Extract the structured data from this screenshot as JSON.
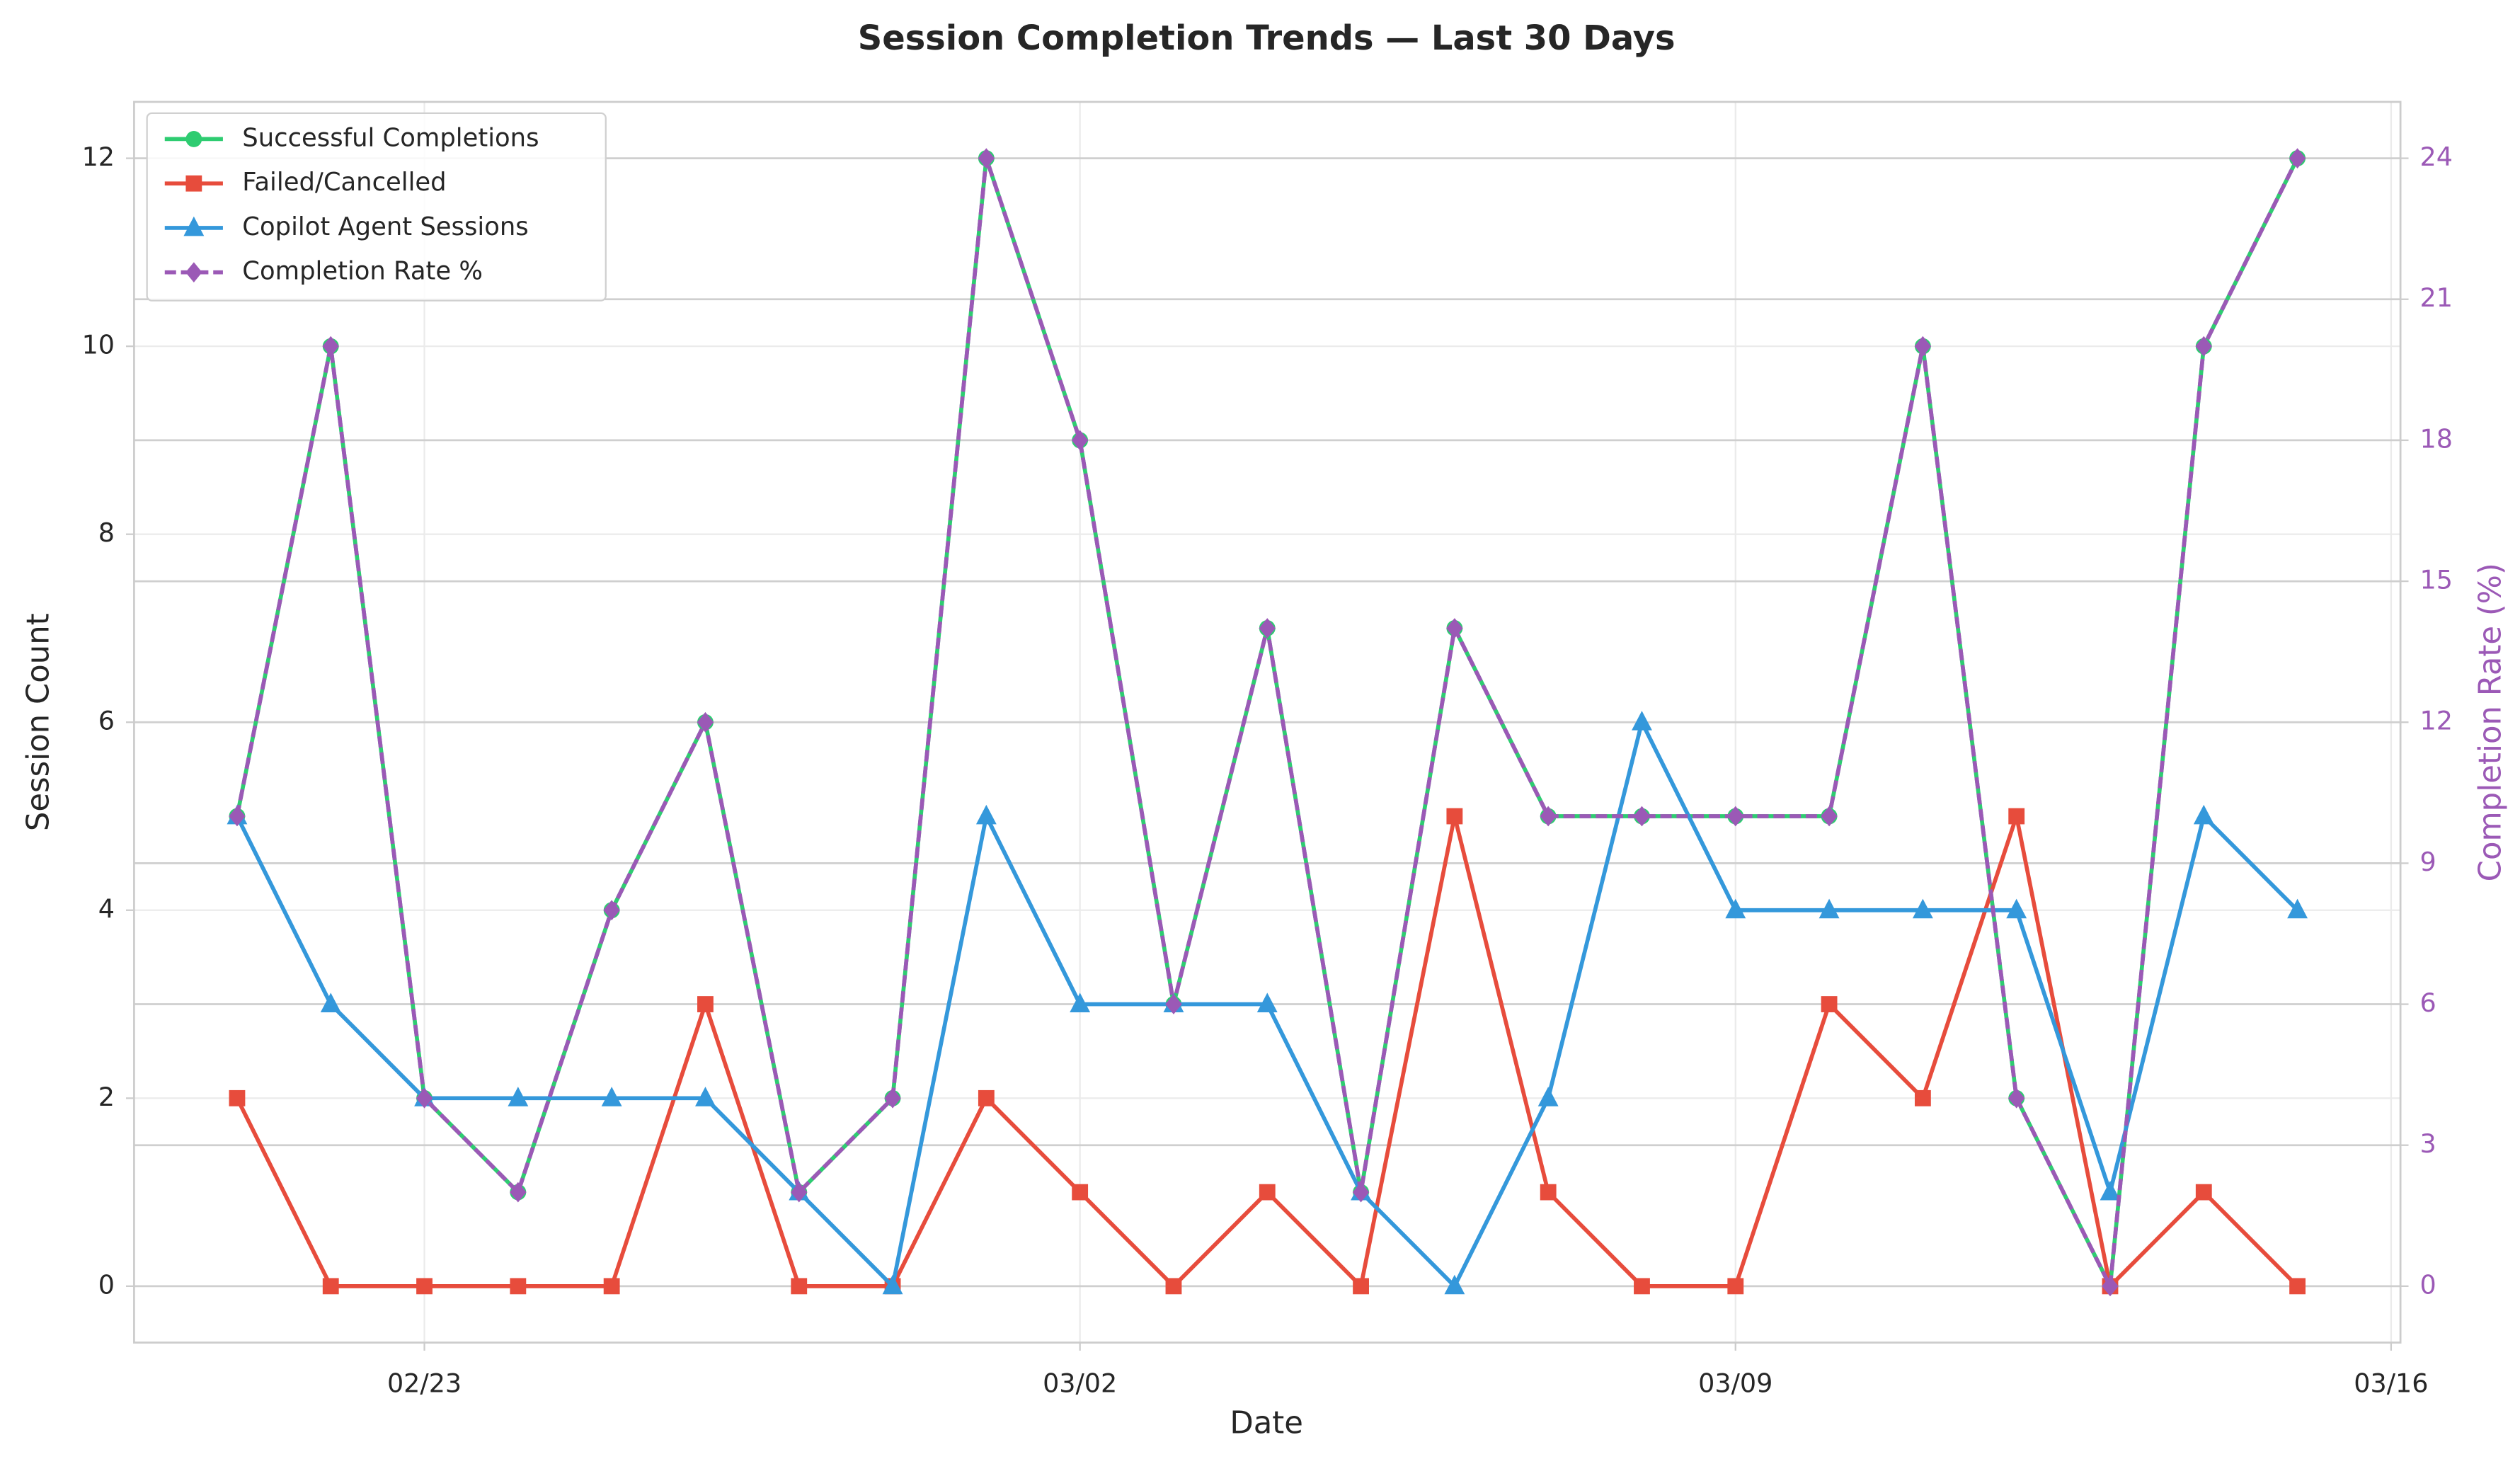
{
  "chart_data": {
    "type": "line",
    "title": "Session Completion Trends — Last 30 Days",
    "x_label": "Date",
    "y_label": "Session Count",
    "y2_label": "Completion Rate (%)",
    "x": [
      "02/21",
      "02/22",
      "02/23",
      "02/24",
      "02/25",
      "02/26",
      "02/27",
      "02/28",
      "03/01",
      "03/02",
      "03/03",
      "03/04",
      "03/05",
      "03/06",
      "03/07",
      "03/08",
      "03/09",
      "03/10",
      "03/11",
      "03/12",
      "03/13",
      "03/14",
      "03/15"
    ],
    "xticks": [
      "02/23",
      "03/02",
      "03/09",
      "03/16"
    ],
    "ylim": [
      -0.6,
      12.6
    ],
    "yticks": [
      0,
      2,
      4,
      6,
      8,
      10,
      12
    ],
    "y2lim": [
      -1.2,
      25.2
    ],
    "y2ticks": [
      0,
      3,
      6,
      9,
      12,
      15,
      18,
      21,
      24
    ],
    "grid": true,
    "legend": "upper left",
    "series": [
      {
        "name": "Successful Completions",
        "color": "#2ecc71",
        "marker": "circle",
        "values": [
          5,
          10,
          2,
          1,
          4,
          6,
          1,
          2,
          12,
          9,
          3,
          7,
          1,
          7,
          5,
          5,
          5,
          5,
          10,
          2,
          0,
          10,
          12
        ]
      },
      {
        "name": "Failed/Cancelled",
        "color": "#e74c3c",
        "marker": "square",
        "values": [
          2,
          0,
          0,
          0,
          0,
          3,
          0,
          0,
          2,
          1,
          0,
          1,
          0,
          5,
          1,
          0,
          0,
          3,
          2,
          5,
          0,
          1,
          0
        ]
      },
      {
        "name": "Copilot Agent Sessions",
        "color": "#3498db",
        "marker": "triangle",
        "values": [
          5,
          3,
          2,
          2,
          2,
          2,
          1,
          0,
          5,
          3,
          3,
          3,
          1,
          0,
          2,
          6,
          4,
          4,
          4,
          4,
          1,
          5,
          4
        ]
      },
      {
        "name": "Completion Rate %",
        "color": "#9b59b6",
        "marker": "diamond",
        "dashed": true,
        "axis": "y2",
        "values": [
          10,
          20,
          4,
          2,
          8,
          12,
          2,
          4,
          24,
          18,
          6,
          14,
          2,
          14,
          10,
          10,
          10,
          10,
          20,
          4,
          0,
          20,
          24
        ]
      }
    ]
  }
}
